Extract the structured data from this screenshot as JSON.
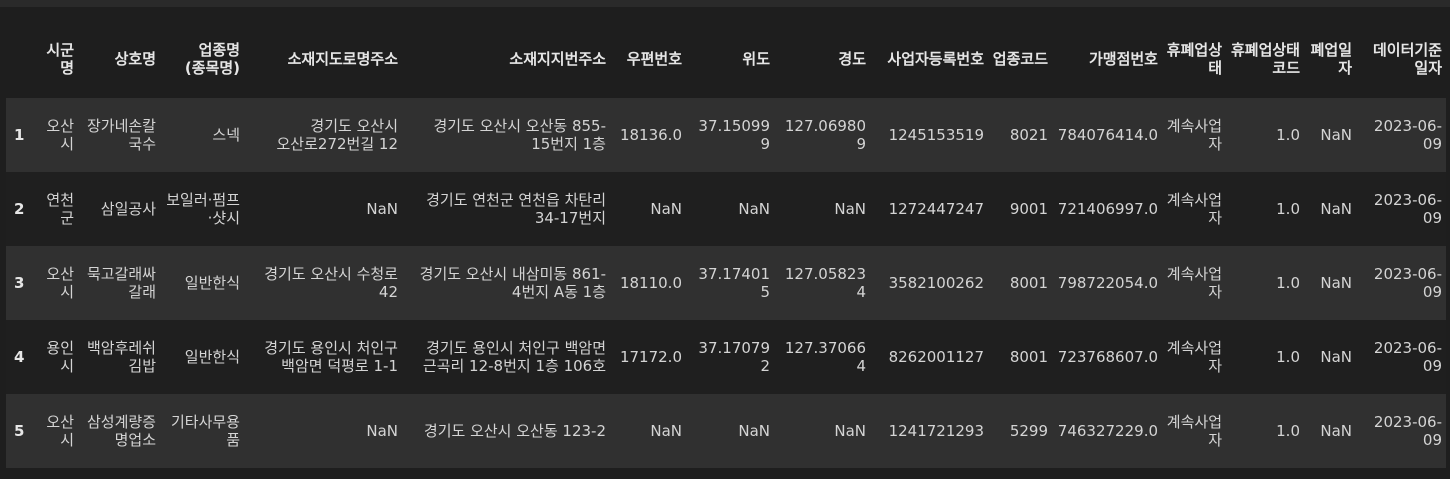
{
  "table": {
    "columns": [
      "시군명",
      "상호명",
      "업종명(종목명)",
      "소재지도로명주소",
      "소재지지번주소",
      "우편번호",
      "위도",
      "경도",
      "사업자등록번호",
      "업종코드",
      "가맹점번호",
      "휴폐업상태",
      "휴폐업상태코드",
      "폐업일자",
      "데이터기준일자"
    ],
    "rows": [
      {
        "index": "1",
        "cells": [
          "오산시",
          "장가네손칼국수",
          "스넥",
          "경기도 오산시 오산로272번길 12",
          "경기도 오산시 오산동 855-15번지 1층",
          "18136.0",
          "37.150999",
          "127.069809",
          "1245153519",
          "8021",
          "784076414.0",
          "계속사업자",
          "1.0",
          "NaN",
          "2023-06-09"
        ]
      },
      {
        "index": "2",
        "cells": [
          "연천군",
          "삼일공사",
          "보일러·펌프·샷시",
          "NaN",
          "경기도 연천군 연천읍 차탄리 34-17번지",
          "NaN",
          "NaN",
          "NaN",
          "1272447247",
          "9001",
          "721406997.0",
          "계속사업자",
          "1.0",
          "NaN",
          "2023-06-09"
        ]
      },
      {
        "index": "3",
        "cells": [
          "오산시",
          "묵고갈래싸갈래",
          "일반한식",
          "경기도 오산시 수청로 42",
          "경기도 오산시 내삼미동 861-4번지 A동 1층",
          "18110.0",
          "37.174015",
          "127.058234",
          "3582100262",
          "8001",
          "798722054.0",
          "계속사업자",
          "1.0",
          "NaN",
          "2023-06-09"
        ]
      },
      {
        "index": "4",
        "cells": [
          "용인시",
          "백암후레쉬김밥",
          "일반한식",
          "경기도 용인시 처인구 백암면 덕평로 1-1",
          "경기도 용인시 처인구 백암면 근곡리 12-8번지 1층 106호",
          "17172.0",
          "37.170792",
          "127.370664",
          "8262001127",
          "8001",
          "723768607.0",
          "계속사업자",
          "1.0",
          "NaN",
          "2023-06-09"
        ]
      },
      {
        "index": "5",
        "cells": [
          "오산시",
          "삼성계량증명업소",
          "기타사무용품",
          "NaN",
          "경기도 오산시 오산동 123-2",
          "NaN",
          "NaN",
          "NaN",
          "1241721293",
          "5299",
          "746327229.0",
          "계속사업자",
          "1.0",
          "NaN",
          "2023-06-09"
        ]
      }
    ]
  }
}
